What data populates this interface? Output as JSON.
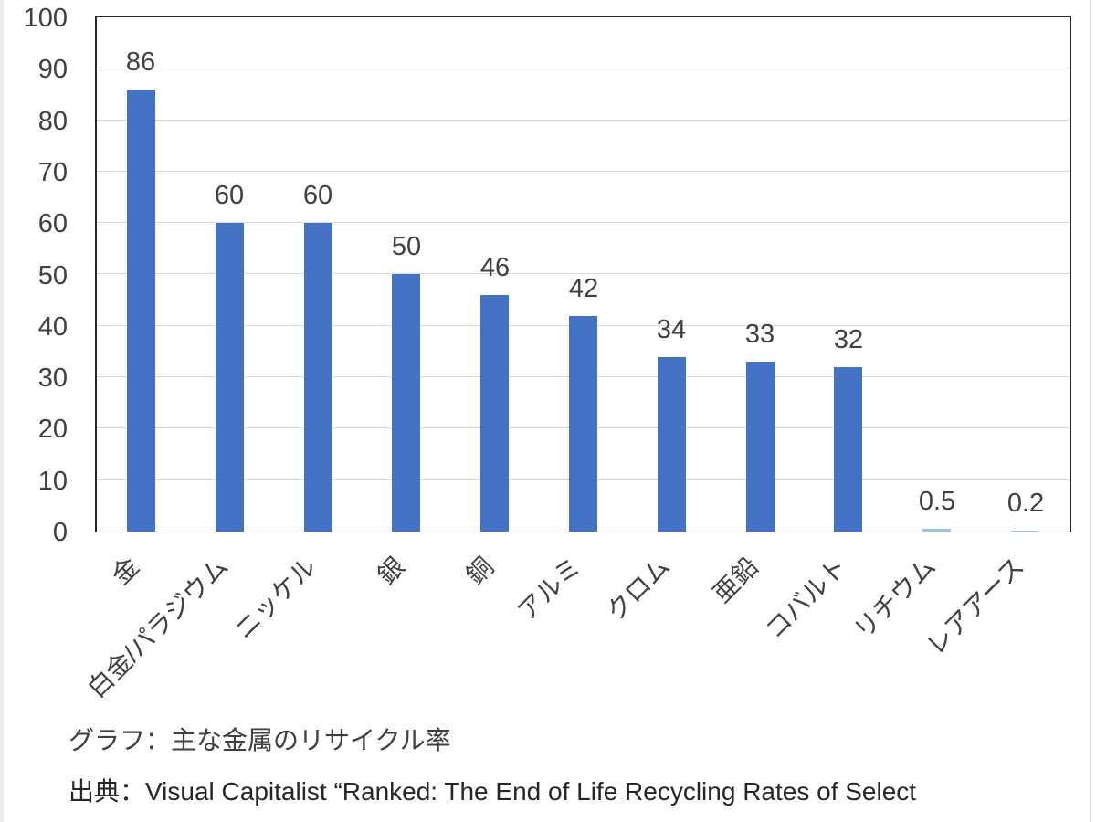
{
  "chart_data": {
    "type": "bar",
    "title": "",
    "xlabel": "",
    "ylabel": "",
    "categories": [
      "金",
      "白金/パラジウム",
      "ニッケル",
      "銀",
      "銅",
      "アルミ",
      "クロム",
      "亜鉛",
      "コバルト",
      "リチウム",
      "レアアース"
    ],
    "values": [
      86,
      60,
      60,
      50,
      46,
      42,
      34,
      33,
      32,
      0.5,
      0.2
    ],
    "data_labels": [
      "86",
      "60",
      "60",
      "50",
      "46",
      "42",
      "34",
      "33",
      "32",
      "0.5",
      "0.2"
    ],
    "ylim": [
      0,
      100
    ],
    "yticks": [
      0,
      10,
      20,
      30,
      40,
      50,
      60,
      70,
      80,
      90,
      100
    ],
    "grid": true,
    "legend": "none",
    "bar_color": "#4472C4",
    "small_bar_color": "#9DC3E6",
    "gridline_color": "#D9D9D9",
    "axis_border_color": "#262626",
    "tick_label_color": "#404040"
  },
  "captions": {
    "graph_caption": "グラフ：主な金属のリサイクル率",
    "source_caption": "出典：Visual Capitalist “Ranked: The End of Life Recycling Rates of Select"
  }
}
